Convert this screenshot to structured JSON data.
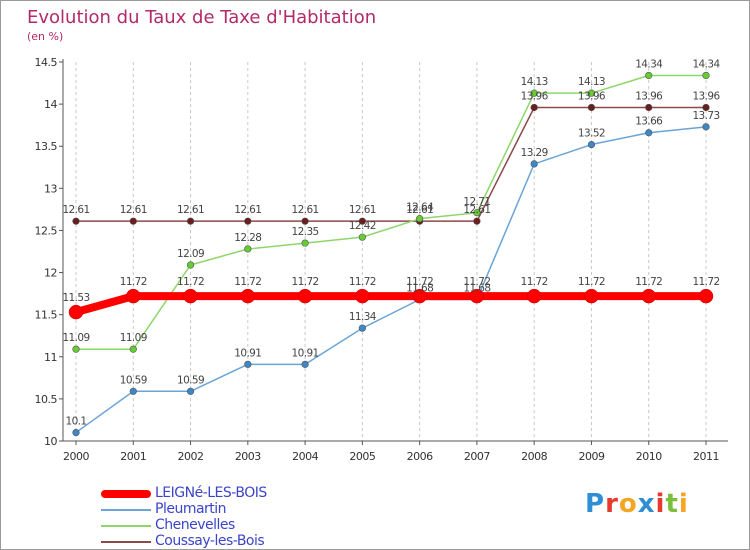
{
  "title": "Evolution du Taux de Taxe d'Habitation",
  "subtitle": "(en %)",
  "logo_text": "Proxiti",
  "logo_colors": [
    "#2f8fd6",
    "#e53a2c",
    "#f4a623",
    "#2f8fd6",
    "#e53a2c",
    "#7cbf3a",
    "#f4a623"
  ],
  "chart_data": {
    "type": "line",
    "title": "Evolution du Taux de Taxe d'Habitation",
    "ylabel": "(en %)",
    "xlabel": "",
    "x": [
      "2000",
      "2001",
      "2002",
      "2003",
      "2004",
      "2005",
      "2006",
      "2007",
      "2008",
      "2009",
      "2010",
      "2011"
    ],
    "ylim": [
      10,
      14.5
    ],
    "yticks": [
      "10",
      "10.5",
      "11",
      "11.5",
      "12",
      "12.5",
      "13",
      "13.5",
      "14",
      "14.5"
    ],
    "grid": "vertical dashed",
    "legend_position": "bottom-left",
    "series": [
      {
        "name": "LEIGNé-LES-BOIS",
        "color": "#ff0000",
        "emphasis": true,
        "values": [
          11.53,
          11.72,
          11.72,
          11.72,
          11.72,
          11.72,
          11.72,
          11.72,
          11.72,
          11.72,
          11.72,
          11.72
        ],
        "labels": [
          "11.53",
          "11.72",
          "11.72",
          "11.72",
          "11.72",
          "11.72",
          "11.72",
          "11.72",
          "11.72",
          "11.72",
          "11.72",
          "11.72"
        ]
      },
      {
        "name": "Pleumartin",
        "color": "#6aa5d6",
        "marker": "#3d87c6",
        "values": [
          10.1,
          10.59,
          10.59,
          10.91,
          10.91,
          11.34,
          11.68,
          11.68,
          13.29,
          13.52,
          13.66,
          13.73
        ],
        "labels": [
          "10.1",
          "10.59",
          "10.59",
          "10.91",
          "10.91",
          "11.34",
          "11.68",
          "11.68",
          "13.29",
          "13.52",
          "13.66",
          "13.73"
        ]
      },
      {
        "name": "Chenevelles",
        "color": "#8ed66a",
        "marker": "#66cc33",
        "values": [
          11.09,
          11.09,
          12.09,
          12.28,
          12.35,
          12.42,
          12.64,
          12.71,
          14.13,
          14.13,
          14.34,
          14.34
        ],
        "labels": [
          "11.09",
          "11.09",
          "12.09",
          "12.28",
          "12.35",
          "12.42",
          "12.64",
          "12.71",
          "14.13",
          "14.13",
          "14.34",
          "14.34"
        ]
      },
      {
        "name": "Coussay-les-Bois",
        "color": "#8a4a4a",
        "marker": "#6a1e1e",
        "values": [
          12.61,
          12.61,
          12.61,
          12.61,
          12.61,
          12.61,
          12.61,
          12.61,
          13.96,
          13.96,
          13.96,
          13.96
        ],
        "labels": [
          "12.61",
          "12.61",
          "12.61",
          "12.61",
          "12.61",
          "12.61",
          "12.61",
          "12.61",
          "13.96",
          "13.96",
          "13.96",
          "13.96"
        ]
      }
    ]
  }
}
